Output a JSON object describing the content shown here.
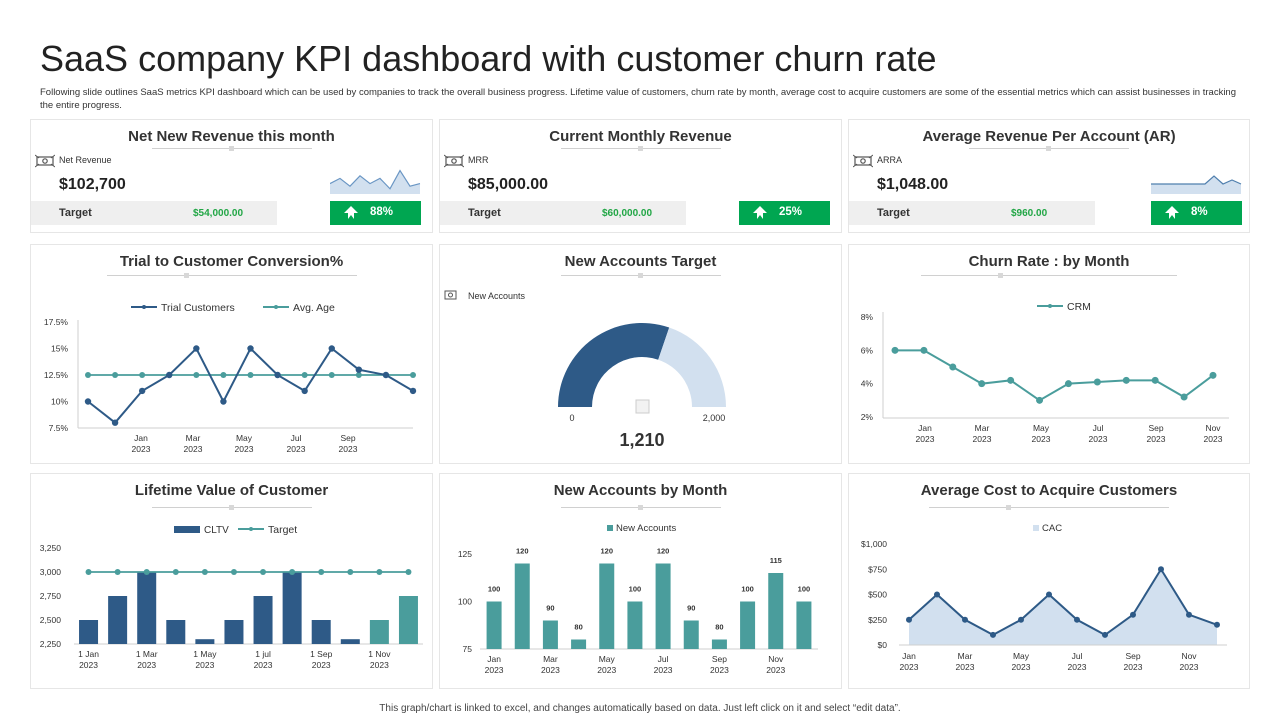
{
  "header": {
    "title": "SaaS company KPI dashboard with customer churn rate",
    "subtitle": "Following slide outlines SaaS metrics KPI dashboard which can be used by companies to track the overall business progress. Lifetime value of customers, churn rate by month, average cost to acquire customers are some of the essential metrics which can assist businesses in tracking the entire progress."
  },
  "kpis": [
    {
      "title": "Net New Revenue this month",
      "label": "Net Revenue",
      "value": "$102,700",
      "target_label": "Target",
      "target_value": "$54,000.00",
      "change": "88%",
      "spark": [
        4,
        6,
        3,
        7,
        4,
        6,
        2,
        9,
        3,
        4
      ]
    },
    {
      "title": "Current Monthly Revenue",
      "label": "MRR",
      "value": "$85,000.00",
      "target_label": "Target",
      "target_value": "$60,000.00",
      "change": "25%"
    },
    {
      "title": "Average Revenue Per Account (AR)",
      "label": "ARRA",
      "value": "$1,048.00",
      "target_label": "Target",
      "target_value": "$960.00",
      "change": "8%",
      "spark": [
        5,
        5,
        5,
        5,
        5,
        5,
        5,
        9,
        5,
        7,
        5
      ]
    }
  ],
  "colors": {
    "navy": "#2e5a87",
    "teal": "#4a9d9c",
    "light": "#d2e0ef",
    "green": "#00a651",
    "greentext": "#21a645",
    "grid": "#e4e4e4"
  },
  "chart_data": [
    {
      "type": "line",
      "title": "Trial to Customer Conversion%",
      "categories": [
        "Jan 2023",
        "Feb 2023",
        "Mar 2023",
        "Apr 2023",
        "May 2023",
        "Jun 2023",
        "Jul 2023",
        "Aug 2023",
        "Sep 2023",
        "Oct 2023",
        "Nov 2023",
        "Dec 2023",
        "Jan 2024"
      ],
      "xtick_labels": [
        [
          "Jan",
          "2023"
        ],
        [
          "Mar",
          "2023"
        ],
        [
          "May",
          "2023"
        ],
        [
          "Jul",
          "2023"
        ],
        [
          "Sep",
          "2023"
        ]
      ],
      "ytick_labels": [
        "17.5%",
        "15%",
        "12.5%",
        "10%",
        "7.5%"
      ],
      "ylim": [
        7.5,
        17.5
      ],
      "series": [
        {
          "name": "Trial Customers",
          "values": [
            10,
            8,
            11,
            12.5,
            15,
            10,
            15,
            12.5,
            11,
            15,
            13,
            12.5,
            11
          ]
        },
        {
          "name": "Avg. Age",
          "values": [
            12.5,
            12.5,
            12.5,
            12.5,
            12.5,
            12.5,
            12.5,
            12.5,
            12.5,
            12.5,
            12.5,
            12.5,
            12.5
          ]
        }
      ]
    },
    {
      "type": "gauge",
      "title": "New Accounts  Target",
      "legend": "New Accounts",
      "value": 1210,
      "value_label": "1,210",
      "min_label": "0",
      "max_label": "2,000",
      "range": [
        0,
        2000
      ]
    },
    {
      "type": "line",
      "title": "Churn Rate : by Month",
      "categories": [
        "Jan 2023",
        "Feb 2023",
        "Mar 2023",
        "Apr 2023",
        "May 2023",
        "Jun 2023",
        "Jul 2023",
        "Aug 2023",
        "Sep 2023",
        "Oct 2023",
        "Nov 2023",
        "Dec 2023"
      ],
      "xtick_labels": [
        [
          "Jan",
          "2023"
        ],
        [
          "Mar",
          "2023"
        ],
        [
          "May",
          "2023"
        ],
        [
          "Jul",
          "2023"
        ],
        [
          "Sep",
          "2023"
        ],
        [
          "Nov",
          "2023"
        ]
      ],
      "ytick_labels": [
        "8%",
        "6%",
        "4%",
        "2%"
      ],
      "ylim": [
        2,
        8
      ],
      "series": [
        {
          "name": "CRM",
          "values": [
            6,
            6,
            5,
            4,
            4.2,
            3,
            4,
            4.1,
            4.2,
            4.2,
            3.2,
            4.5
          ]
        }
      ]
    },
    {
      "type": "bar+line",
      "title": "Lifetime Value of Customer",
      "categories": [
        "1 Jan 2023",
        "2023-02",
        "1 Mar 2023",
        "2023-04",
        "1 May 2023",
        "2023-06",
        "1 jul 2023",
        "2023-08",
        "1 Sep 2023",
        "2023-10",
        "1 Nov 2023",
        "2023-12"
      ],
      "xtick_labels": [
        [
          "1 Jan",
          "2023"
        ],
        [
          "1 Mar",
          "2023"
        ],
        [
          "1 May",
          "2023"
        ],
        [
          "1 jul",
          "2023"
        ],
        [
          "1 Sep",
          "2023"
        ],
        [
          "1 Nov",
          "2023"
        ]
      ],
      "ytick_labels": [
        "3,250",
        "3,000",
        "2,750",
        "2,500",
        "2,250"
      ],
      "ylim": [
        2250,
        3250
      ],
      "series": [
        {
          "name": "CLTV",
          "values": [
            2500,
            2750,
            3000,
            2500,
            2300,
            2500,
            2750,
            3000,
            2500,
            2300,
            2500,
            2750
          ]
        },
        {
          "name": "Target",
          "values": [
            3000,
            3000,
            3000,
            3000,
            3000,
            3000,
            3000,
            3000,
            3000,
            3000,
            3000,
            3000
          ]
        }
      ]
    },
    {
      "type": "bar",
      "title": "New Accounts by Month",
      "categories": [
        "Jan 2023",
        "Feb 2023",
        "Mar 2023",
        "Apr 2023",
        "May 2023",
        "Jun 2023",
        "Jul 2023",
        "Aug 2023",
        "Sep 2023",
        "Oct 2023",
        "Nov 2023",
        "Dec 2023"
      ],
      "xtick_labels": [
        [
          "Jan",
          "2023"
        ],
        [
          "Mar",
          "2023"
        ],
        [
          "May",
          "2023"
        ],
        [
          "Jul",
          "2023"
        ],
        [
          "Sep",
          "2023"
        ],
        [
          "Nov",
          "2023"
        ]
      ],
      "ytick_labels": [
        "125",
        "100",
        "75"
      ],
      "ylim": [
        75,
        125
      ],
      "series": [
        {
          "name": "New Accounts",
          "values": [
            100,
            120,
            90,
            80,
            120,
            100,
            120,
            90,
            80,
            100,
            115,
            100
          ]
        }
      ]
    },
    {
      "type": "area",
      "title": "Average Cost to Acquire Customers",
      "categories": [
        "Jan 2023",
        "Feb 2023",
        "Mar 2023",
        "Apr 2023",
        "May 2023",
        "Jun 2023",
        "Jul 2023",
        "Aug 2023",
        "Sep 2023",
        "Oct 2023",
        "Nov 2023",
        "Dec 2023"
      ],
      "xtick_labels": [
        [
          "Jan",
          "2023"
        ],
        [
          "Mar",
          "2023"
        ],
        [
          "May",
          "2023"
        ],
        [
          "Jul",
          "2023"
        ],
        [
          "Sep",
          "2023"
        ],
        [
          "Nov",
          "2023"
        ]
      ],
      "ytick_labels": [
        "$1,000",
        "$750",
        "$500",
        "$250",
        "$0"
      ],
      "ylim": [
        0,
        1000
      ],
      "series": [
        {
          "name": "CAC",
          "values": [
            250,
            500,
            250,
            100,
            250,
            500,
            250,
            100,
            300,
            750,
            300,
            200
          ]
        }
      ]
    }
  ],
  "footer": "This graph/chart is linked to excel, and changes automatically based on data. Just left click on it and select “edit data”."
}
